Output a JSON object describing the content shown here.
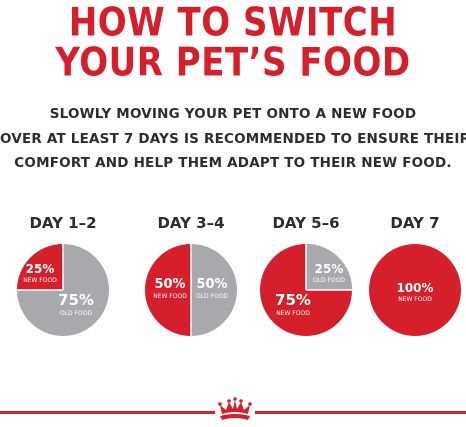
{
  "title": {
    "line1": "HOW TO SWITCH",
    "line2": "YOUR PET’S FOOD"
  },
  "intro": {
    "line1": "SLOWLY MOVING YOUR PET ONTO A NEW FOOD",
    "line2": "OVER AT LEAST 7 DAYS IS RECOMMENDED TO ENSURE THEIR",
    "line3": "COMFORT AND HELP THEM ADAPT TO THEIR NEW FOOD."
  },
  "colors": {
    "brand_red": "#d51f2b",
    "old_food_gray": "#a8a9ad",
    "text_dark": "#2c2c2c"
  },
  "steps": [
    {
      "day": "DAY 1–2",
      "new_pct": 25,
      "new_label": "25%",
      "new_sub": "NEW FOOD",
      "old_label": "75%",
      "old_sub": "OLD FOOD"
    },
    {
      "day": "DAY 3–4",
      "new_pct": 50,
      "new_label": "50%",
      "new_sub": "NEW FOOD",
      "old_label": "50%",
      "old_sub": "OLD FOOD"
    },
    {
      "day": "DAY 5–6",
      "new_pct": 75,
      "new_label": "75%",
      "new_sub": "NEW FOOD",
      "old_label": "25%",
      "old_sub": "OLD FOOD"
    },
    {
      "day": "DAY 7",
      "new_pct": 100,
      "new_label": "100%",
      "new_sub": "NEW FOOD",
      "old_label": "",
      "old_sub": ""
    }
  ],
  "footer": {
    "logo_icon": "crown-icon"
  }
}
